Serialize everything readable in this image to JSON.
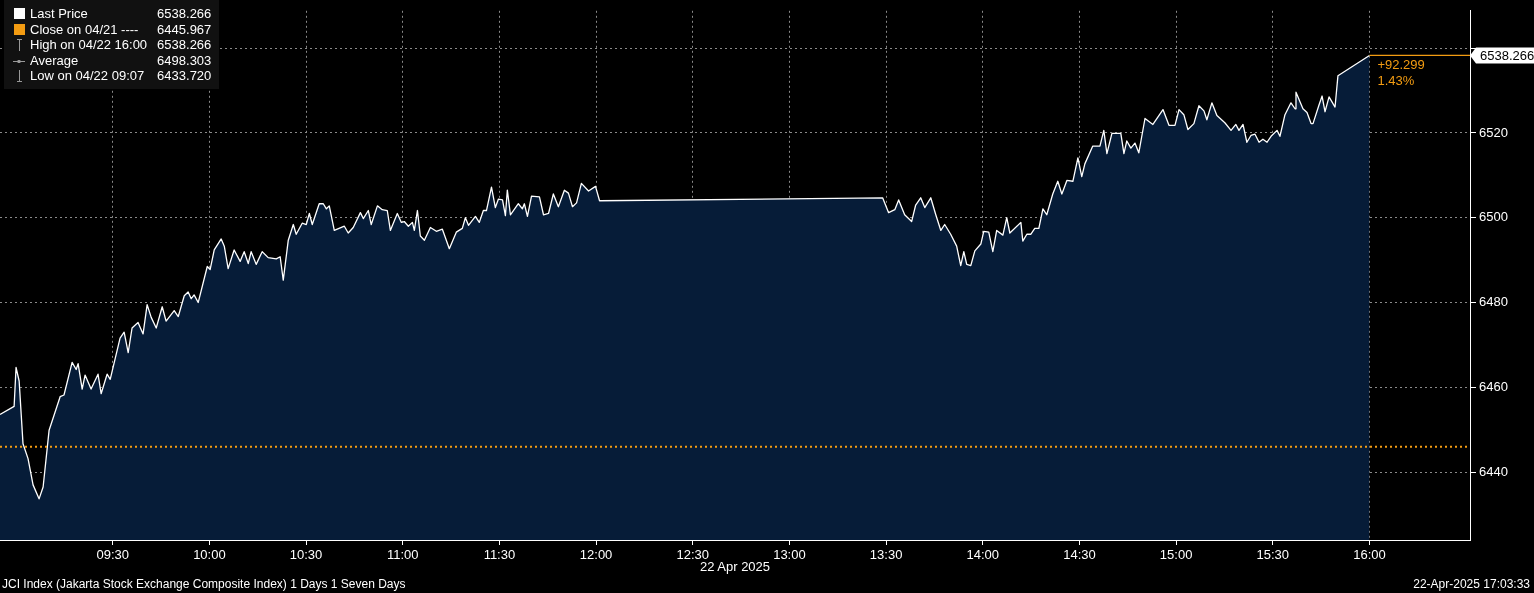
{
  "chart_data": {
    "type": "area",
    "title": "JCI Index (Jakarta Stock Exchange Composite Index) 1 Days 1 Seven Days",
    "subtitle": "22-Apr-2025 17:03:33",
    "xlabel": "22 Apr 2025",
    "xlim": [
      8.917,
      16.52
    ],
    "xticks": [
      {
        "value": 9.5,
        "label": "09:30"
      },
      {
        "value": 10,
        "label": "10:00"
      },
      {
        "value": 10.5,
        "label": "10:30"
      },
      {
        "value": 11,
        "label": "11:00"
      },
      {
        "value": 11.5,
        "label": "11:30"
      },
      {
        "value": 12,
        "label": "12:00"
      },
      {
        "value": 12.5,
        "label": "12:30"
      },
      {
        "value": 13,
        "label": "13:00"
      },
      {
        "value": 13.5,
        "label": "13:30"
      },
      {
        "value": 14,
        "label": "14:00"
      },
      {
        "value": 14.5,
        "label": "14:30"
      },
      {
        "value": 15,
        "label": "15:00"
      },
      {
        "value": 15.5,
        "label": "15:30"
      },
      {
        "value": 16,
        "label": "16:00"
      }
    ],
    "ylim": [
      6424,
      6548.8
    ],
    "yticks": [
      6440,
      6460,
      6480,
      6500,
      6520,
      {
        "value": 6540,
        "label": null
      }
    ],
    "grid": true,
    "legend": "top left",
    "marker": "none",
    "line_style": "solid",
    "series": [
      {
        "name": "Last Price",
        "color": "#ffffff",
        "x": [
          8.917,
          8.99,
          9.0,
          9.016,
          9.036,
          9.062,
          9.088,
          9.119,
          9.14,
          9.171,
          9.228,
          9.248,
          9.29,
          9.311,
          9.321,
          9.342,
          9.357,
          9.388,
          9.424,
          9.44,
          9.471,
          9.487,
          9.538,
          9.559,
          9.58,
          9.6,
          9.631,
          9.657,
          9.678,
          9.699,
          9.725,
          9.756,
          9.776,
          9.818,
          9.839,
          9.87,
          9.89,
          9.906,
          9.921,
          9.942,
          9.989,
          10.004,
          10.025,
          10.061,
          10.077,
          10.097,
          10.128,
          10.159,
          10.18,
          10.201,
          10.216,
          10.242,
          10.273,
          10.304,
          10.346,
          10.366,
          10.382,
          10.408,
          10.434,
          10.449,
          10.48,
          10.501,
          10.517,
          10.532,
          10.568,
          10.589,
          10.605,
          10.62,
          10.646,
          10.698,
          10.718,
          10.744,
          10.781,
          10.796,
          10.822,
          10.837,
          10.869,
          10.894,
          10.92,
          10.936,
          10.972,
          10.993,
          11.008,
          11.029,
          11.05,
          11.06,
          11.076,
          11.091,
          11.112,
          11.143,
          11.174,
          11.205,
          11.241,
          11.277,
          11.308,
          11.324,
          11.34,
          11.376,
          11.396,
          11.417,
          11.433,
          11.459,
          11.479,
          11.495,
          11.516,
          11.531,
          11.541,
          11.557,
          11.598,
          11.619,
          11.629,
          11.645,
          11.666,
          11.707,
          11.728,
          11.754,
          11.779,
          11.805,
          11.836,
          11.857,
          11.878,
          11.899,
          11.924,
          11.961,
          11.997,
          12.018,
          13.482,
          13.513,
          13.545,
          13.565,
          13.596,
          13.632,
          13.653,
          13.679,
          13.7,
          13.731,
          13.757,
          13.783,
          13.803,
          13.834,
          13.865,
          13.886,
          13.902,
          13.917,
          13.938,
          13.959,
          13.99,
          14.005,
          14.031,
          14.052,
          14.072,
          14.104,
          14.124,
          14.14,
          14.197,
          14.207,
          14.228,
          14.248,
          14.269,
          14.29,
          14.311,
          14.331,
          14.362,
          14.388,
          14.409,
          14.435,
          14.466,
          14.492,
          14.512,
          14.528,
          14.569,
          14.606,
          14.626,
          14.642,
          14.668,
          14.714,
          14.73,
          14.745,
          14.766,
          14.787,
          14.807,
          14.839,
          14.88,
          14.932,
          14.963,
          14.994,
          15.015,
          15.04,
          15.061,
          15.092,
          15.118,
          15.144,
          15.159,
          15.185,
          15.211,
          15.252,
          15.284,
          15.309,
          15.325,
          15.346,
          15.366,
          15.387,
          15.408,
          15.429,
          15.449,
          15.47,
          15.491,
          15.522,
          15.537,
          15.563,
          15.594,
          15.615,
          15.62,
          15.656,
          15.677,
          15.698,
          15.708,
          15.739,
          15.755,
          15.77,
          15.791,
          15.822,
          15.837,
          16
        ],
        "values": [
          6453.6,
          6455.5,
          6464.7,
          6461.5,
          6446.7,
          6443.2,
          6437.0,
          6433.7,
          6436.5,
          6449.9,
          6457.8,
          6458.2,
          6465.9,
          6464.2,
          6465.6,
          6459.6,
          6462.9,
          6459.6,
          6463.1,
          6458.5,
          6463.1,
          6461.9,
          6471.6,
          6473.0,
          6468.2,
          6474.0,
          6475.3,
          6472.6,
          6479.5,
          6476.5,
          6474.0,
          6479.0,
          6475.6,
          6478.1,
          6476.7,
          6481.6,
          6482.5,
          6480.9,
          6481.8,
          6480.0,
          6488.5,
          6487.8,
          6492.4,
          6495.0,
          6493.3,
          6488.0,
          6492.4,
          6489.7,
          6492.0,
          6489.2,
          6492.0,
          6489.0,
          6492.0,
          6490.6,
          6490.3,
          6490.8,
          6485.3,
          6494.7,
          6498.4,
          6496.1,
          6498.7,
          6498.4,
          6501.0,
          6498.4,
          6503.3,
          6503.3,
          6502.1,
          6502.8,
          6497.0,
          6498.0,
          6496.4,
          6497.7,
          6501.2,
          6499.8,
          6501.7,
          6498.4,
          6502.8,
          6501.9,
          6501.7,
          6497.0,
          6501.0,
          6498.9,
          6499.1,
          6498.0,
          6498.9,
          6497.0,
          6501.7,
          6495.7,
          6494.7,
          6497.7,
          6496.8,
          6497.3,
          6492.7,
          6496.6,
          6497.5,
          6500.0,
          6498.2,
          6500.3,
          6498.9,
          6501.7,
          6501.7,
          6507.2,
          6502.4,
          6504.4,
          6504.2,
          6500.5,
          6506.5,
          6500.7,
          6503.3,
          6502.1,
          6503.3,
          6500.3,
          6505.1,
          6504.9,
          6500.7,
          6501.0,
          6505.6,
          6502.6,
          6506.5,
          6505.8,
          6502.6,
          6503.5,
          6508.1,
          6506.3,
          6507.4,
          6504.0,
          6504.7,
          6501.2,
          6501.9,
          6504.2,
          6500.7,
          6499.1,
          6503.0,
          6504.7,
          6502.4,
          6504.7,
          6500.7,
          6497.0,
          6498.4,
          6496.1,
          6493.3,
          6488.7,
          6492.0,
          6489.0,
          6488.7,
          6492.2,
          6493.8,
          6496.8,
          6496.6,
          6492.0,
          6497.0,
          6495.9,
          6500.0,
          6496.4,
          6498.9,
          6494.5,
          6496.1,
          6496.1,
          6497.5,
          6497.5,
          6502.1,
          6500.7,
          6505.6,
          6508.6,
          6505.6,
          6508.8,
          6508.6,
          6514.1,
          6509.7,
          6512.7,
          6516.9,
          6516.9,
          6520.6,
          6515.1,
          6519.9,
          6519.9,
          6515.1,
          6518.1,
          6516.4,
          6517.6,
          6515.3,
          6523.4,
          6522.0,
          6525.5,
          6521.8,
          6521.8,
          6525.5,
          6524.3,
          6520.8,
          6522.2,
          6526.4,
          6525.2,
          6523.1,
          6527.1,
          6524.1,
          6522.4,
          6520.6,
          6522.0,
          6520.6,
          6522.0,
          6517.8,
          6519.4,
          6519.7,
          6517.8,
          6518.5,
          6517.8,
          6519.2,
          6520.6,
          6519.2,
          6524.3,
          6527.1,
          6525.7,
          6529.6,
          6525.7,
          6524.8,
          6522.2,
          6522.2,
          6526.6,
          6528.7,
          6525.0,
          6528.5,
          6526.1,
          6533.5,
          6538.266
        ],
        "value_labels": [
          null,
          null,
          null,
          null,
          null,
          null,
          null,
          null,
          null,
          null,
          null,
          null,
          null,
          null,
          null,
          null,
          null,
          null,
          null,
          null,
          null,
          null,
          null,
          null,
          null,
          null,
          null,
          null,
          null,
          null,
          null,
          null,
          null,
          null,
          null,
          null,
          null,
          null,
          null,
          null,
          null,
          null,
          null,
          null,
          null,
          null,
          null,
          null,
          null,
          null,
          null,
          null,
          null,
          null,
          null,
          null,
          null,
          null,
          null,
          null,
          null,
          null,
          null,
          null,
          null,
          null,
          null,
          null,
          null,
          null,
          null,
          null,
          null,
          null,
          null,
          null,
          null,
          null,
          null,
          null,
          null,
          null,
          null,
          null,
          null,
          null,
          null,
          null,
          null,
          null,
          null,
          null,
          null,
          null,
          null,
          null,
          null,
          null,
          null,
          null,
          null,
          null,
          null,
          null,
          null,
          null,
          null,
          null,
          null,
          null,
          null,
          null,
          null,
          null,
          null,
          null,
          null,
          null,
          null,
          null,
          null,
          null,
          null,
          null,
          null,
          null,
          null,
          null,
          null,
          null,
          null,
          null,
          null,
          null,
          null,
          null,
          null,
          null,
          null,
          null,
          null,
          null,
          null,
          null,
          null,
          null,
          null,
          null,
          null,
          null,
          null,
          null,
          null,
          null,
          null,
          null,
          null,
          null,
          null,
          null,
          null,
          null,
          null,
          null,
          null,
          null,
          null,
          null,
          null,
          null,
          null,
          null,
          null,
          null,
          null,
          null,
          null,
          null,
          null,
          null,
          null,
          null,
          null,
          null,
          null,
          null,
          null,
          null,
          null,
          null,
          null,
          null,
          null,
          null,
          null,
          null,
          null,
          null,
          null,
          null,
          null,
          null,
          null,
          null,
          null,
          null,
          null,
          null,
          null,
          null,
          null,
          null,
          null,
          null,
          null,
          null,
          null,
          null,
          null,
          null,
          null,
          null,
          null,
          "6538.266"
        ]
      }
    ],
    "ref_lines": [
      {
        "axis": "y",
        "value": 6445.967,
        "label": "Close on 04/21 ---- 6445.967",
        "color": "#f39c12",
        "line_style": "dotted"
      }
    ],
    "annotations": [
      {
        "text": "+92.299",
        "x": 16,
        "y": 6538.266
      },
      {
        "text": "1.43%",
        "x": 16,
        "y": 6538.266
      },
      "High on 04/22 16:00 6538.266",
      "Average 6498.303",
      "Low on 04/22 09:07 6433.720"
    ]
  }
}
